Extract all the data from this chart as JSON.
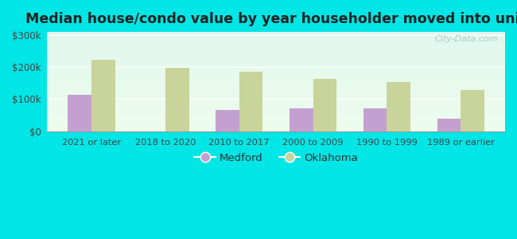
{
  "categories": [
    "2021 or later",
    "2018 to 2020",
    "2010 to 2017",
    "2000 to 2009",
    "1990 to 1999",
    "1989 or earlier"
  ],
  "medford_values": [
    113000,
    0,
    65000,
    70000,
    72000,
    40000
  ],
  "oklahoma_values": [
    222000,
    198000,
    185000,
    163000,
    153000,
    128000
  ],
  "medford_color": "#c4a0d0",
  "oklahoma_color": "#c8d49a",
  "title": "Median house/condo value by year householder moved into unit",
  "title_fontsize": 12.5,
  "legend_labels": [
    "Medford",
    "Oklahoma"
  ],
  "ylim": [
    0,
    310000
  ],
  "yticks": [
    0,
    100000,
    200000,
    300000
  ],
  "outer_bg": "#00e5e5",
  "plot_bg_top": "#e0f5e8",
  "plot_bg_bottom": "#f0faf5",
  "bar_width": 0.32,
  "watermark": "City-Data.com",
  "watermark_color": "#aacccc"
}
